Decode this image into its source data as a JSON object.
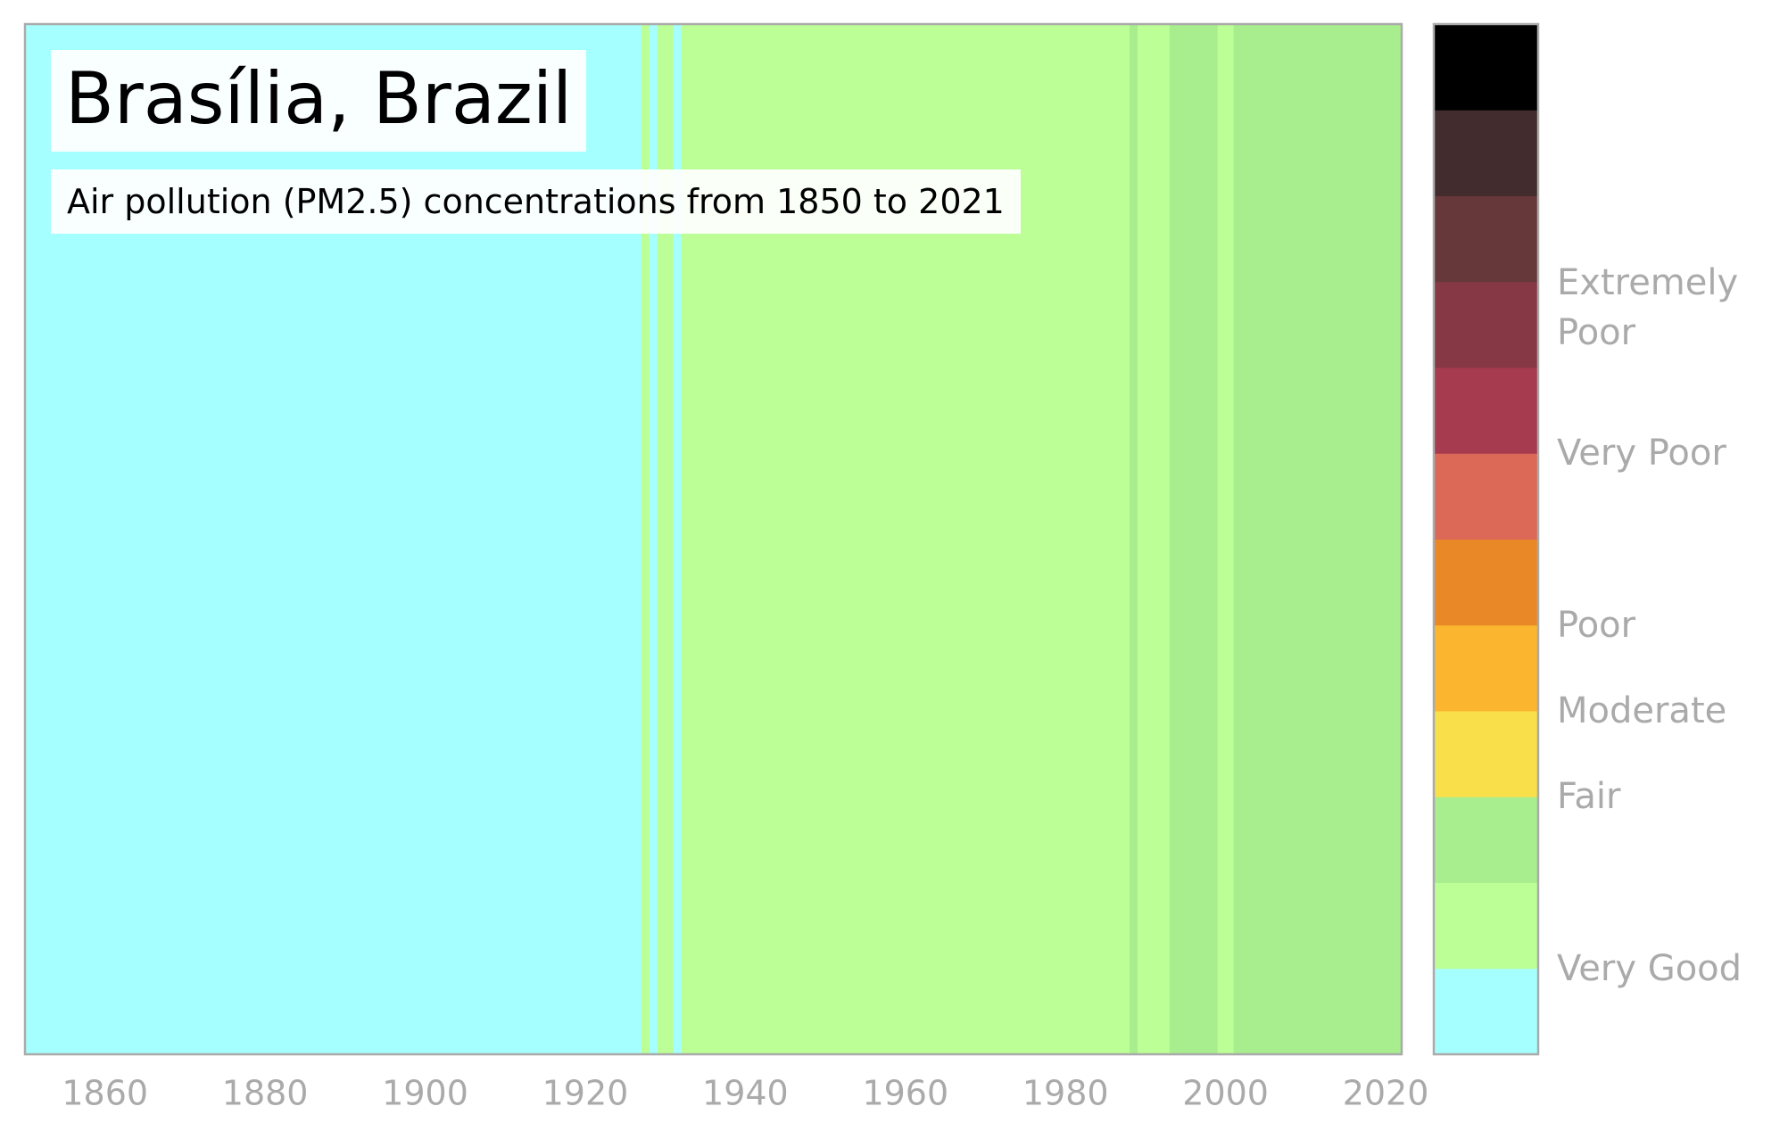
{
  "chart_data": {
    "type": "stripes",
    "title": "Brasília, Brazil",
    "subtitle": "Air pollution (PM2.5) concentrations from 1850 to 2021",
    "x": [
      1850,
      1927,
      1928,
      1929,
      1931,
      1932,
      1988,
      1989,
      1993,
      1999,
      2001
    ],
    "values": [
      0,
      1,
      0,
      1,
      0,
      1,
      2,
      1,
      2,
      1,
      2
    ],
    "xlim": [
      1850,
      2022
    ],
    "xticks": [
      1860,
      1880,
      1900,
      1920,
      1940,
      1960,
      1980,
      2000,
      2020
    ],
    "colors": [
      "#a6ffff",
      "#bcff96",
      "#a8ed8e",
      "#f9e04a",
      "#fbb52e",
      "#e98826",
      "#dc6958",
      "#a63a4e",
      "#873845",
      "#67383a",
      "#432c2e",
      "#000000"
    ],
    "clim": [
      0,
      12
    ],
    "cticks": [
      {
        "value": 1,
        "label": "Very Good"
      },
      {
        "value": 3,
        "label": "Fair"
      },
      {
        "value": 4,
        "label": "Moderate"
      },
      {
        "value": 5,
        "label": "Poor"
      },
      {
        "value": 7,
        "label": "Very Poor"
      },
      {
        "value": 8.7,
        "label": "Extremely Poor"
      }
    ]
  }
}
